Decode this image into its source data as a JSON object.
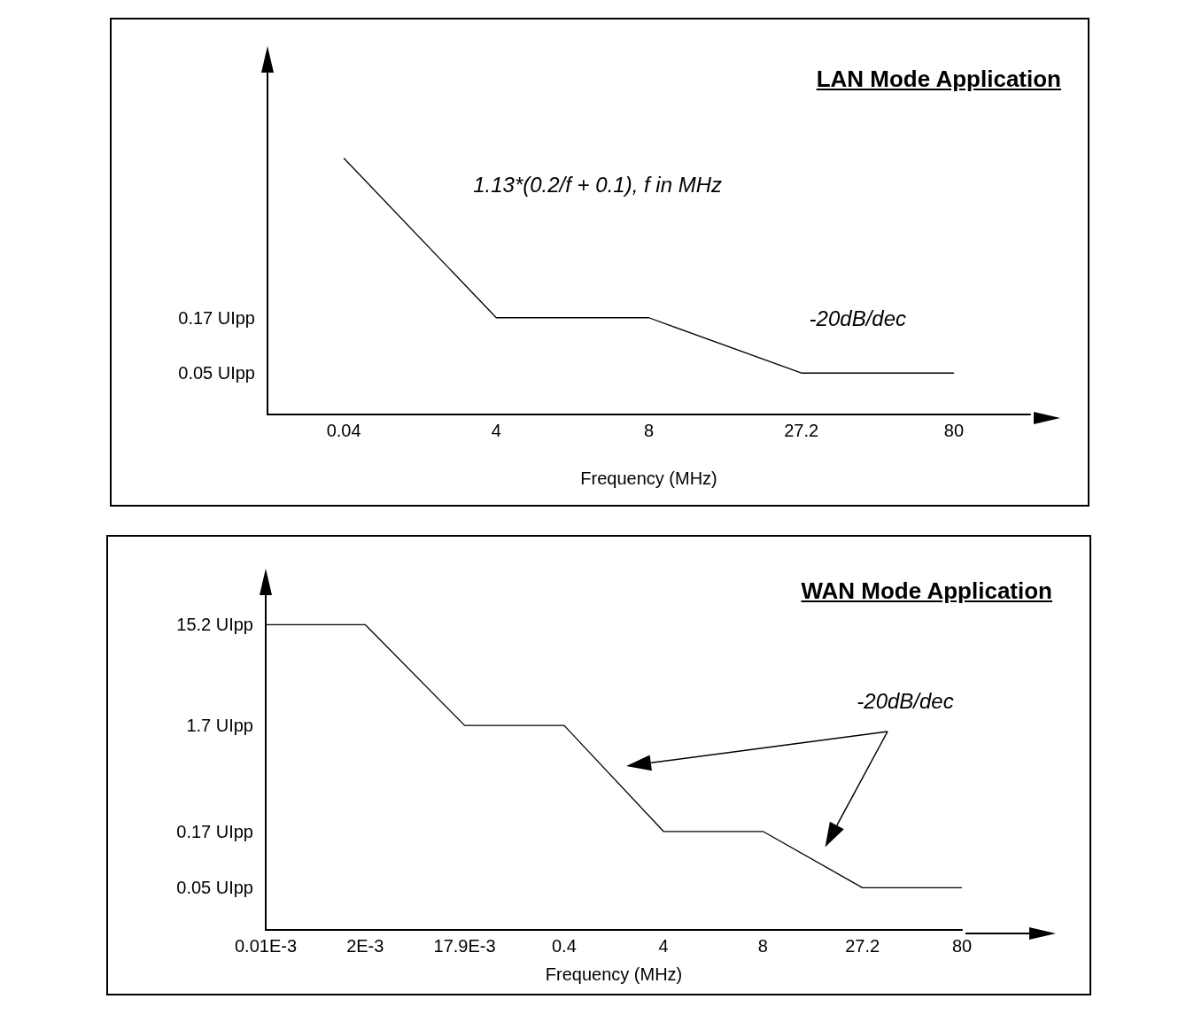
{
  "chart_data": [
    {
      "type": "line",
      "title": "LAN Mode Application",
      "xlabel": "Frequency (MHz)",
      "categories": [
        "0.04",
        "4",
        "8",
        "27.2",
        "80"
      ],
      "values": [
        5.8,
        0.17,
        0.17,
        0.05,
        0.05
      ],
      "color": "#000000",
      "log": true,
      "ylim": [
        0.02,
        40
      ],
      "yticks": [
        {
          "value": 0.17,
          "label": "0.17 UIpp"
        },
        {
          "value": 0.05,
          "label": "0.05 UIpp"
        }
      ],
      "marker": "none",
      "annotations": [
        "1.13*(0.2/f + 0.1), f in MHz",
        "-20dB/dec"
      ]
    },
    {
      "type": "line",
      "title": "WAN Mode Application",
      "xlabel": "Frequency (MHz)",
      "categories": [
        "0.01E-3",
        "2E-3",
        "17.9E-3",
        "0.4",
        "4",
        "8",
        "27.2",
        "80"
      ],
      "values": [
        15.2,
        15.2,
        1.7,
        1.7,
        0.17,
        0.17,
        0.05,
        0.05
      ],
      "color": "#000000",
      "log": true,
      "ylim": [
        0.02,
        30
      ],
      "yticks": [
        {
          "value": 15.2,
          "label": "15.2 UIpp"
        },
        {
          "value": 1.7,
          "label": "1.7 UIpp"
        },
        {
          "value": 0.17,
          "label": "0.17 UIpp"
        },
        {
          "value": 0.05,
          "label": "0.05 UIpp"
        }
      ],
      "marker": "none",
      "annotations": [
        "-20dB/dec"
      ]
    }
  ]
}
